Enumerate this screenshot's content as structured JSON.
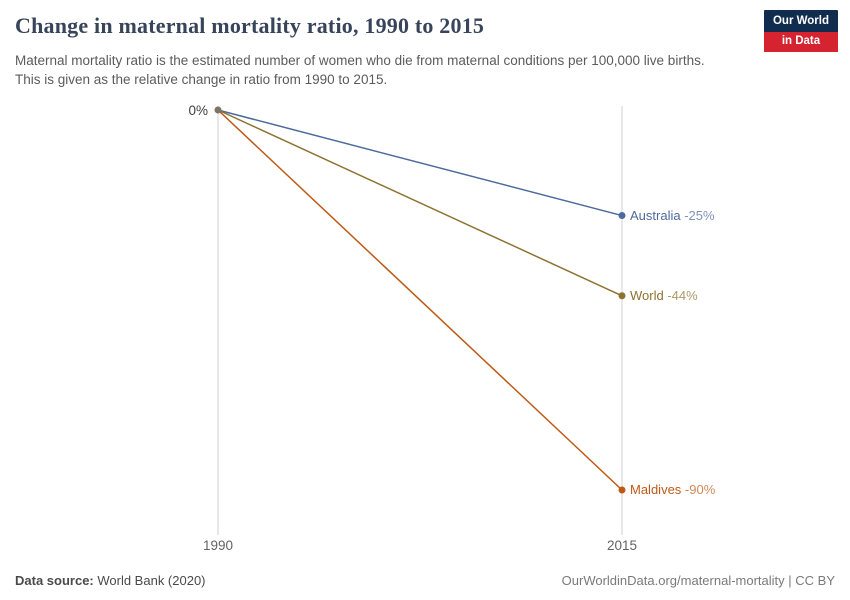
{
  "logo": {
    "line1": "Our World",
    "line2": "in Data",
    "bg_color": "#102d50",
    "accent_color": "#d5232f"
  },
  "chart_data": {
    "type": "line",
    "title": "Change in maternal mortality ratio, 1990 to 2015",
    "subtitle": "Maternal mortality ratio is the estimated number of women who die from maternal conditions per 100,000 live births. This is given as the relative change in ratio from 1990 to 2015.",
    "x": [
      1990,
      2015
    ],
    "x_labels": [
      "1990",
      "2015"
    ],
    "zero_label": "0%",
    "unit": "%",
    "ylim": [
      -100,
      0
    ],
    "grid": false,
    "legend_position": "right-of-end-points",
    "series": [
      {
        "name": "Australia",
        "values": [
          0,
          -25
        ],
        "display_value": "-25%",
        "color": "#4c6a9c"
      },
      {
        "name": "World",
        "values": [
          0,
          -44
        ],
        "display_value": "-44%",
        "color": "#8d7332"
      },
      {
        "name": "Maldives",
        "values": [
          0,
          -90
        ],
        "display_value": "-90%",
        "color": "#be5915"
      }
    ],
    "start_point_color": "#7d7468",
    "axis_color": "#d2d2d2"
  },
  "footer": {
    "datasource_label": "Data source:",
    "datasource_value": " World Bank (2020)",
    "credit": "OurWorldinData.org/maternal-mortality | CC BY"
  }
}
